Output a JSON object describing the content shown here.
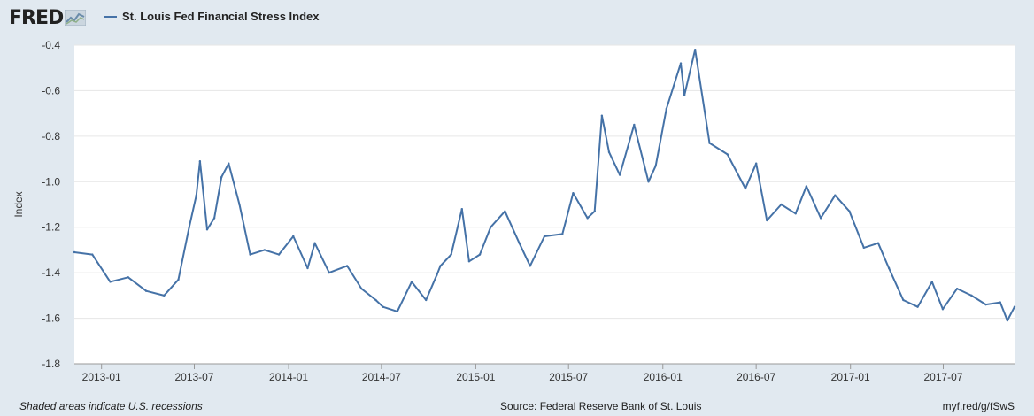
{
  "header": {
    "logo_text": "FRED",
    "legend_label": "St. Louis Fed Financial Stress Index"
  },
  "footer": {
    "recession_note": "Shaded areas indicate U.S. recessions",
    "source": "Source: Federal Reserve Bank of St. Louis",
    "url": "myf.red/g/fSwS"
  },
  "colors": {
    "series": "#4572a7",
    "plot_bg": "#ffffff",
    "page_bg": "#e1e9f0"
  },
  "chart_data": {
    "type": "line",
    "ylabel": "Index",
    "ylim": [
      -1.8,
      -0.4
    ],
    "yticks": [
      -0.4,
      -0.6,
      -0.8,
      -1.0,
      -1.2,
      -1.4,
      -1.6,
      -1.8
    ],
    "ytick_labels": [
      "-0.4",
      "-0.6",
      "-0.8",
      "-1.0",
      "-1.2",
      "-1.4",
      "-1.6",
      "-1.8"
    ],
    "xticks": [
      "2013-01",
      "2013-07",
      "2014-01",
      "2014-07",
      "2015-01",
      "2015-07",
      "2016-01",
      "2016-07",
      "2017-01",
      "2017-07"
    ],
    "xlim": [
      "2012-11-09",
      "2017-11-17"
    ],
    "grid": true,
    "legend": "top-left",
    "series": [
      {
        "name": "St. Louis Fed Financial Stress Index",
        "x": [
          "2012-11-09",
          "2012-12-14",
          "2013-01-18",
          "2013-02-22",
          "2013-03-29",
          "2013-05-03",
          "2013-05-31",
          "2013-06-21",
          "2013-07-05",
          "2013-07-12",
          "2013-07-26",
          "2013-08-09",
          "2013-08-23",
          "2013-09-06",
          "2013-09-27",
          "2013-10-18",
          "2013-11-15",
          "2013-12-13",
          "2014-01-10",
          "2014-02-07",
          "2014-02-21",
          "2014-03-21",
          "2014-04-25",
          "2014-05-23",
          "2014-06-20",
          "2014-07-04",
          "2014-08-01",
          "2014-08-29",
          "2014-09-26",
          "2014-10-17",
          "2014-10-24",
          "2014-11-14",
          "2014-12-05",
          "2014-12-19",
          "2015-01-09",
          "2015-01-30",
          "2015-02-27",
          "2015-03-27",
          "2015-04-17",
          "2015-05-15",
          "2015-06-19",
          "2015-07-10",
          "2015-08-07",
          "2015-08-21",
          "2015-09-04",
          "2015-09-18",
          "2015-10-09",
          "2015-11-06",
          "2015-12-04",
          "2015-12-18",
          "2016-01-08",
          "2016-02-05",
          "2016-02-12",
          "2016-03-04",
          "2016-04-01",
          "2016-05-06",
          "2016-06-10",
          "2016-07-01",
          "2016-07-22",
          "2016-08-19",
          "2016-09-16",
          "2016-10-07",
          "2016-11-04",
          "2016-12-02",
          "2016-12-30",
          "2017-01-27",
          "2017-02-24",
          "2017-03-17",
          "2017-04-14",
          "2017-05-12",
          "2017-06-09",
          "2017-06-30",
          "2017-07-28",
          "2017-08-25",
          "2017-09-22",
          "2017-10-20",
          "2017-11-03",
          "2017-11-17"
        ],
        "y": [
          -1.31,
          -1.32,
          -1.44,
          -1.42,
          -1.48,
          -1.5,
          -1.43,
          -1.2,
          -1.06,
          -0.91,
          -1.21,
          -1.16,
          -0.98,
          -0.92,
          -1.1,
          -1.32,
          -1.3,
          -1.32,
          -1.24,
          -1.38,
          -1.27,
          -1.4,
          -1.37,
          -1.47,
          -1.52,
          -1.55,
          -1.57,
          -1.44,
          -1.52,
          -1.41,
          -1.37,
          -1.32,
          -1.12,
          -1.35,
          -1.32,
          -1.2,
          -1.13,
          -1.27,
          -1.37,
          -1.24,
          -1.23,
          -1.05,
          -1.16,
          -1.13,
          -0.71,
          -0.87,
          -0.97,
          -0.75,
          -1.0,
          -0.93,
          -0.68,
          -0.48,
          -0.62,
          -0.42,
          -0.83,
          -0.88,
          -1.03,
          -0.92,
          -1.17,
          -1.1,
          -1.14,
          -1.02,
          -1.16,
          -1.06,
          -1.13,
          -1.29,
          -1.27,
          -1.38,
          -1.52,
          -1.55,
          -1.44,
          -1.56,
          -1.47,
          -1.5,
          -1.54,
          -1.53,
          -1.61,
          -1.55
        ]
      }
    ]
  }
}
